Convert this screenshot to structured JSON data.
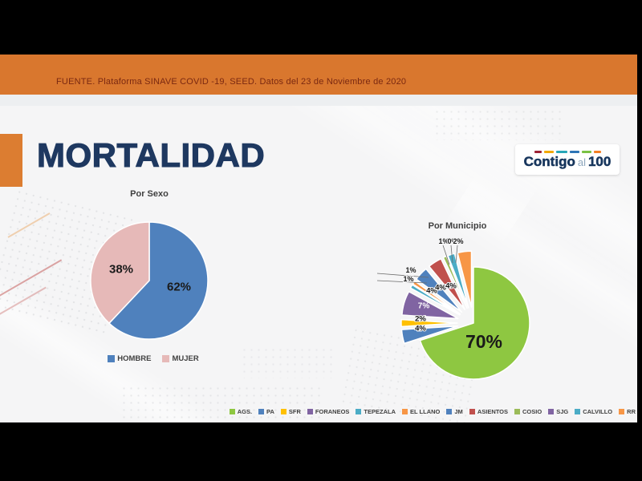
{
  "source_bar": {
    "text": "FUENTE. Plataforma SINAVE COVID -19, SEED. Datos del 23 de Noviembre de 2020",
    "bg_color": "#D9772E",
    "text_color": "#7A2811"
  },
  "title": "MORTALIDAD",
  "title_color": "#1E3860",
  "logo": {
    "contigo": "Contigo",
    "al": "al",
    "hundred": "100",
    "text_color": "#17365D",
    "dash_colors": [
      "#9D2235",
      "#F2A900",
      "#28A7B8",
      "#2E75B6",
      "#7AC143",
      "#F58025"
    ]
  },
  "chart_data": [
    {
      "type": "pie",
      "title": "Por Sexo",
      "labels": [
        "HOMBRE",
        "MUJER"
      ],
      "values": [
        62,
        38
      ],
      "colors": [
        "#4F81BD",
        "#E6B9B8"
      ],
      "data_labels": [
        "62%",
        "38%"
      ],
      "legend_position": "bottom",
      "start_angle": 0,
      "direction": "clockwise"
    },
    {
      "type": "pie",
      "title": "Por Municipio",
      "exploded": true,
      "labels": [
        "AGS.",
        "PA",
        "SFR",
        "FORANEOS",
        "TEPEZALA",
        "EL LLANO",
        "JM",
        "ASIENTOS",
        "COSIO",
        "SJG",
        "CALVILLO",
        "RR"
      ],
      "values": [
        70,
        4,
        2,
        7,
        1,
        1,
        4,
        4,
        1,
        0,
        2,
        4
      ],
      "colors": [
        "#8EC741",
        "#4F81BD",
        "#FFC000",
        "#8064A2",
        "#4BACC6",
        "#F79646",
        "#4F81BD",
        "#C0504D",
        "#9BBB59",
        "#8064A2",
        "#4BACC6",
        "#F79646"
      ],
      "data_labels": [
        "70%",
        "4%",
        "2%",
        "7%",
        "1%",
        "1%",
        "4%",
        "4%",
        "1%",
        "0%",
        "2%",
        "4%"
      ],
      "legend_position": "bottom",
      "start_angle": 0,
      "direction": "clockwise"
    }
  ]
}
